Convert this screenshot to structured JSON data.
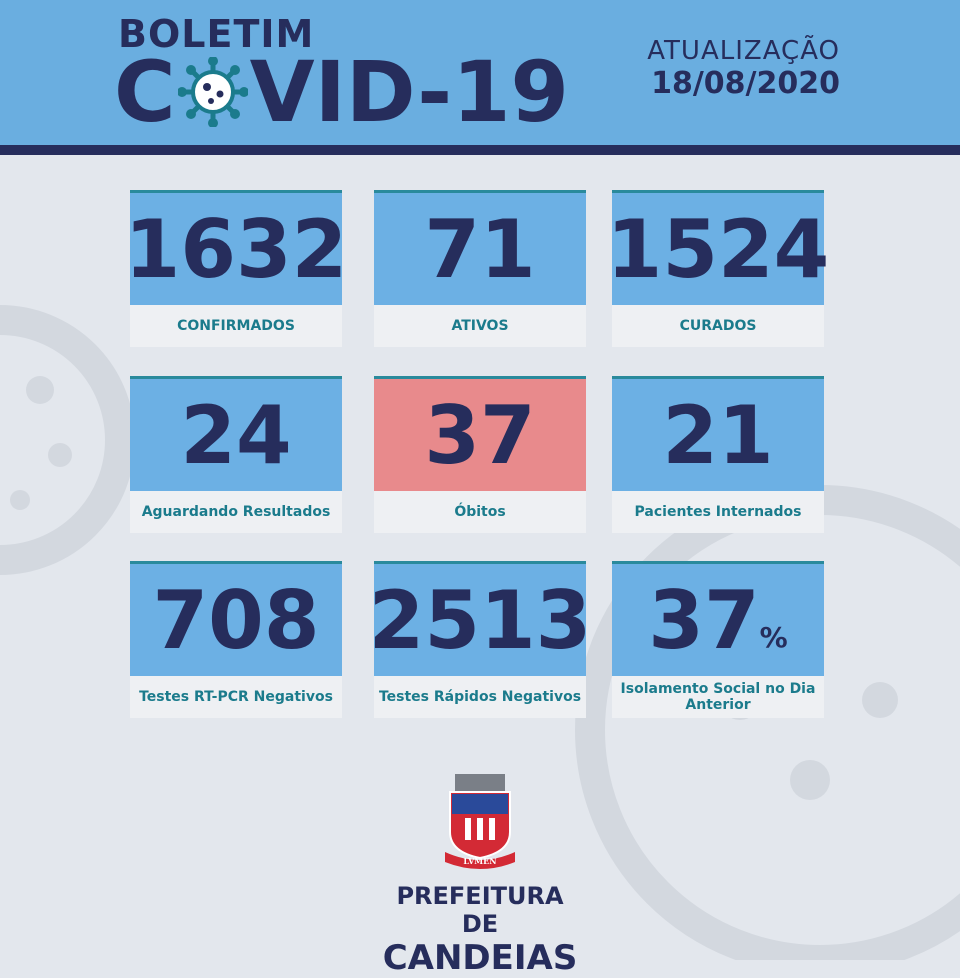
{
  "header": {
    "kicker": "BOLETIM",
    "title_prefix": "C",
    "title_suffix": "VID-19",
    "update_label": "ATUALIZAÇÃO",
    "update_date": "18/08/2020"
  },
  "cards": [
    {
      "value": 1632,
      "label": "CONFIRMADOS",
      "color": "#6cb0e4"
    },
    {
      "value": 71,
      "label": "ATIVOS",
      "color": "#6cb0e4"
    },
    {
      "value": 1524,
      "label": "CURADOS",
      "color": "#6cb0e4"
    },
    {
      "value": 24,
      "label": "Aguardando Resultados",
      "color": "#6cb0e4"
    },
    {
      "value": 37,
      "label": "Óbitos",
      "color": "#e88a8c"
    },
    {
      "value": 21,
      "label": "Pacientes Internados",
      "color": "#6cb0e4"
    },
    {
      "value": 708,
      "label": "Testes RT-PCR Negativos",
      "color": "#6cb0e4"
    },
    {
      "value": 2513,
      "label": "Testes Rápidos Negativos",
      "color": "#6cb0e4"
    },
    {
      "value": 37,
      "unit": "%",
      "label": "Isolamento Social no Dia Anterior",
      "color": "#6cb0e4"
    }
  ],
  "footer": {
    "crest_motto": "LVMEN",
    "line1": "PREFEITURA DE",
    "line2": "CANDEIAS"
  }
}
